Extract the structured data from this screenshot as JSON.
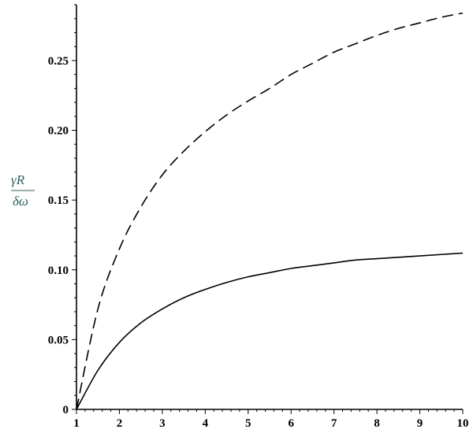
{
  "chart_data": {
    "type": "line",
    "title": "",
    "xlabel": "",
    "ylabel": {
      "numerator": "γR",
      "denominator": "δω"
    },
    "xlim": [
      1,
      10
    ],
    "ylim": [
      0,
      0.29
    ],
    "x_ticks": [
      1,
      2,
      3,
      4,
      5,
      6,
      7,
      8,
      9,
      10
    ],
    "x_tick_labels": [
      "1",
      "2",
      "3",
      "4",
      "5",
      "6",
      "7",
      "8",
      "9",
      "10"
    ],
    "y_ticks": [
      0,
      0.05,
      0.1,
      0.15,
      0.2,
      0.25
    ],
    "y_tick_labels": [
      "0",
      "0.05",
      "0.10",
      "0.15",
      "0.20",
      "0.25"
    ],
    "grid": false,
    "legend": "none",
    "series": [
      {
        "style": "solid",
        "color": "#000000",
        "x": [
          1,
          1.5,
          2,
          2.5,
          3,
          3.5,
          4,
          4.5,
          5,
          5.5,
          6,
          6.5,
          7,
          7.5,
          8,
          8.5,
          9,
          9.5,
          10
        ],
        "y": [
          0,
          0.028,
          0.048,
          0.062,
          0.072,
          0.08,
          0.086,
          0.091,
          0.095,
          0.098,
          0.101,
          0.103,
          0.105,
          0.107,
          0.108,
          0.109,
          0.11,
          0.111,
          0.112
        ]
      },
      {
        "style": "dashed",
        "color": "#000000",
        "x": [
          1,
          1.5,
          2,
          2.5,
          3,
          3.5,
          4,
          4.5,
          5,
          5.5,
          6,
          6.5,
          7,
          7.5,
          8,
          8.5,
          9,
          9.5,
          10
        ],
        "y": [
          0,
          0.072,
          0.115,
          0.145,
          0.168,
          0.185,
          0.199,
          0.211,
          0.221,
          0.23,
          0.24,
          0.248,
          0.256,
          0.262,
          0.268,
          0.273,
          0.277,
          0.281,
          0.284
        ]
      }
    ]
  }
}
